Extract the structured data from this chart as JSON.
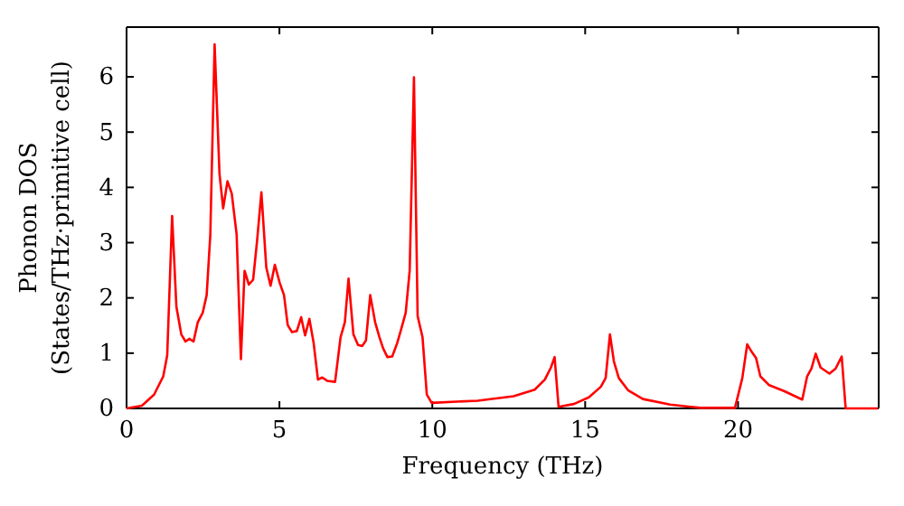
{
  "chart_data": {
    "type": "line",
    "xlabel": "Frequency (THz)",
    "ylabel": "Phonon DOS\n(States/THz·primitive cell)",
    "xlim": [
      0,
      24.6
    ],
    "ylim": [
      0,
      6.9
    ],
    "xticks": [
      0,
      5,
      10,
      15,
      20
    ],
    "yticks": [
      0,
      1,
      2,
      3,
      4,
      5,
      6
    ],
    "grid": false,
    "series": [
      {
        "color": "#ff0000",
        "x": [
          0,
          0.5,
          0.9,
          1.2,
          1.33,
          1.49,
          1.63,
          1.79,
          1.93,
          2.05,
          2.19,
          2.33,
          2.49,
          2.62,
          2.74,
          2.88,
          3.04,
          3.16,
          3.3,
          3.44,
          3.6,
          3.74,
          3.86,
          4.0,
          4.14,
          4.27,
          4.41,
          4.57,
          4.71,
          4.85,
          5.01,
          5.15,
          5.27,
          5.41,
          5.57,
          5.71,
          5.84,
          5.98,
          6.12,
          6.26,
          6.4,
          6.56,
          6.82,
          7.0,
          7.14,
          7.26,
          7.42,
          7.57,
          7.71,
          7.83,
          7.97,
          8.13,
          8.27,
          8.39,
          8.53,
          8.69,
          8.85,
          8.99,
          9.13,
          9.26,
          9.4,
          9.52,
          9.68,
          9.82,
          9.98,
          11.48,
          12.66,
          13.35,
          13.68,
          13.88,
          14.0,
          14.13,
          14.63,
          15.12,
          15.51,
          15.67,
          15.81,
          15.94,
          16.1,
          16.4,
          16.89,
          17.78,
          18.76,
          19.9,
          20.14,
          20.3,
          20.45,
          20.59,
          20.73,
          21.02,
          21.52,
          22.1,
          22.26,
          22.4,
          22.54,
          22.7,
          22.99,
          23.19,
          23.39,
          23.52,
          24.57
        ],
        "values": [
          0,
          0.05,
          0.25,
          0.58,
          0.96,
          3.48,
          1.84,
          1.34,
          1.21,
          1.26,
          1.21,
          1.56,
          1.73,
          2.05,
          3.15,
          6.59,
          4.24,
          3.62,
          4.11,
          3.89,
          3.15,
          0.89,
          2.49,
          2.24,
          2.33,
          3.04,
          3.91,
          2.55,
          2.22,
          2.6,
          2.27,
          2.05,
          1.51,
          1.38,
          1.4,
          1.65,
          1.32,
          1.62,
          1.18,
          0.52,
          0.56,
          0.5,
          0.48,
          1.29,
          1.56,
          2.35,
          1.34,
          1.15,
          1.13,
          1.23,
          2.05,
          1.56,
          1.29,
          1.09,
          0.93,
          0.94,
          1.18,
          1.45,
          1.73,
          2.49,
          5.99,
          1.67,
          1.29,
          0.25,
          0.1,
          0.14,
          0.22,
          0.34,
          0.52,
          0.74,
          0.93,
          0.03,
          0.08,
          0.2,
          0.39,
          0.55,
          1.34,
          0.85,
          0.55,
          0.33,
          0.17,
          0.07,
          0.01,
          0.01,
          0.55,
          1.16,
          1.02,
          0.91,
          0.58,
          0.42,
          0.31,
          0.16,
          0.58,
          0.72,
          0.99,
          0.74,
          0.63,
          0.72,
          0.94,
          0,
          0
        ]
      }
    ]
  }
}
